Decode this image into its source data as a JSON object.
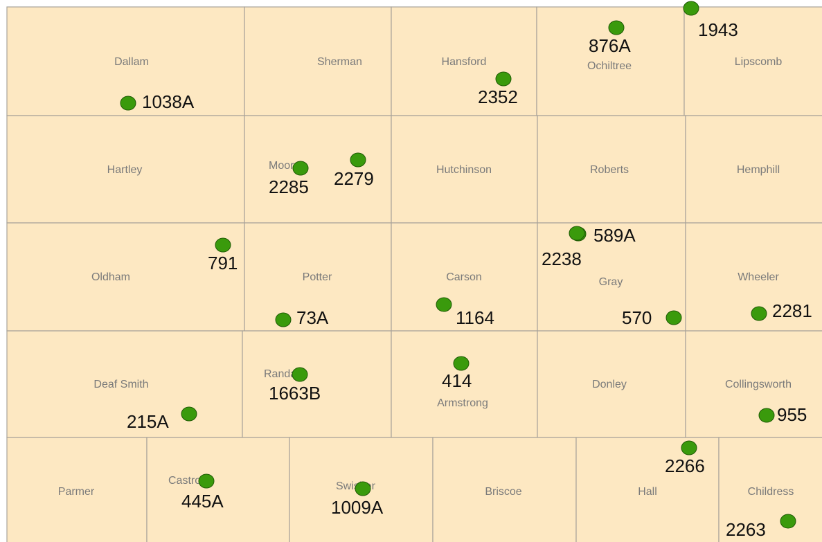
{
  "counties": [
    {
      "name": "Dallam"
    },
    {
      "name": "Sherman"
    },
    {
      "name": "Hansford"
    },
    {
      "name": "Ochiltree"
    },
    {
      "name": "Lipscomb"
    },
    {
      "name": "Hartley"
    },
    {
      "name": "Moore"
    },
    {
      "name": "Hutchinson"
    },
    {
      "name": "Roberts"
    },
    {
      "name": "Hemphill"
    },
    {
      "name": "Oldham"
    },
    {
      "name": "Potter"
    },
    {
      "name": "Carson"
    },
    {
      "name": "Gray"
    },
    {
      "name": "Wheeler"
    },
    {
      "name": "Deaf Smith"
    },
    {
      "name": "Randall"
    },
    {
      "name": "Armstrong"
    },
    {
      "name": "Donley"
    },
    {
      "name": "Collingsworth"
    },
    {
      "name": "Parmer"
    },
    {
      "name": "Castro"
    },
    {
      "name": "Swisher"
    },
    {
      "name": "Briscoe"
    },
    {
      "name": "Hall"
    },
    {
      "name": "Childress"
    }
  ],
  "sites": [
    {
      "label": "1038A"
    },
    {
      "label": "2352"
    },
    {
      "label": "876A"
    },
    {
      "label": "1943"
    },
    {
      "label": "2285"
    },
    {
      "label": "2279"
    },
    {
      "label": "791"
    },
    {
      "label": "589A"
    },
    {
      "label": "2238"
    },
    {
      "label": "73A"
    },
    {
      "label": "1164"
    },
    {
      "label": "570"
    },
    {
      "label": "2281"
    },
    {
      "label": "414"
    },
    {
      "label": "1663B"
    },
    {
      "label": "215A"
    },
    {
      "label": "955"
    },
    {
      "label": "2266"
    },
    {
      "label": "445A"
    },
    {
      "label": "1009A"
    },
    {
      "label": "2263"
    }
  ]
}
